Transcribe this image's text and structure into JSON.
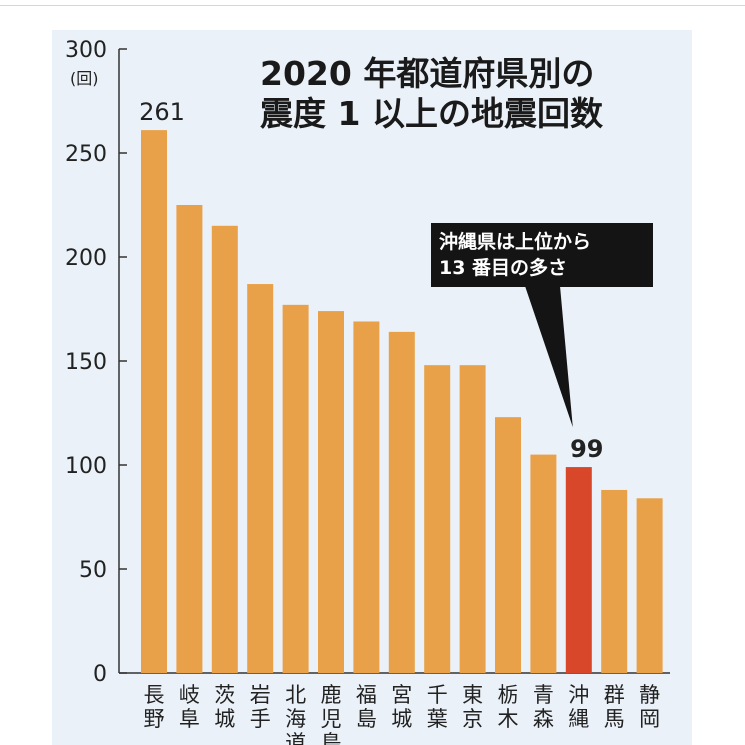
{
  "chart_data": {
    "type": "bar",
    "title_lines": [
      "2020 年都道府県別の",
      "震度 1 以上の地震回数"
    ],
    "unit_label": "(回)",
    "categories": [
      "長野",
      "岐阜",
      "茨城",
      "岩手",
      "北海道",
      "鹿児島",
      "福島",
      "宮城",
      "千葉",
      "東京",
      "栃木",
      "青森",
      "沖縄",
      "群馬",
      "静岡"
    ],
    "values": [
      261,
      225,
      215,
      187,
      177,
      174,
      169,
      164,
      148,
      148,
      123,
      105,
      99,
      88,
      84
    ],
    "highlight_category": "沖縄",
    "data_labels": [
      {
        "category": "長野",
        "text": "261"
      },
      {
        "category": "沖縄",
        "text": "99"
      }
    ],
    "annotation_lines": [
      "沖縄県は上位から",
      "13 番目の多さ"
    ],
    "yticks": [
      "0",
      "50",
      "100",
      "150",
      "200",
      "250",
      "300"
    ],
    "ylim": [
      0,
      300
    ],
    "colors": {
      "bar": "#e8a148",
      "highlight": "#d9472a",
      "background": "#eaf1f8",
      "axis": "#333333"
    }
  }
}
